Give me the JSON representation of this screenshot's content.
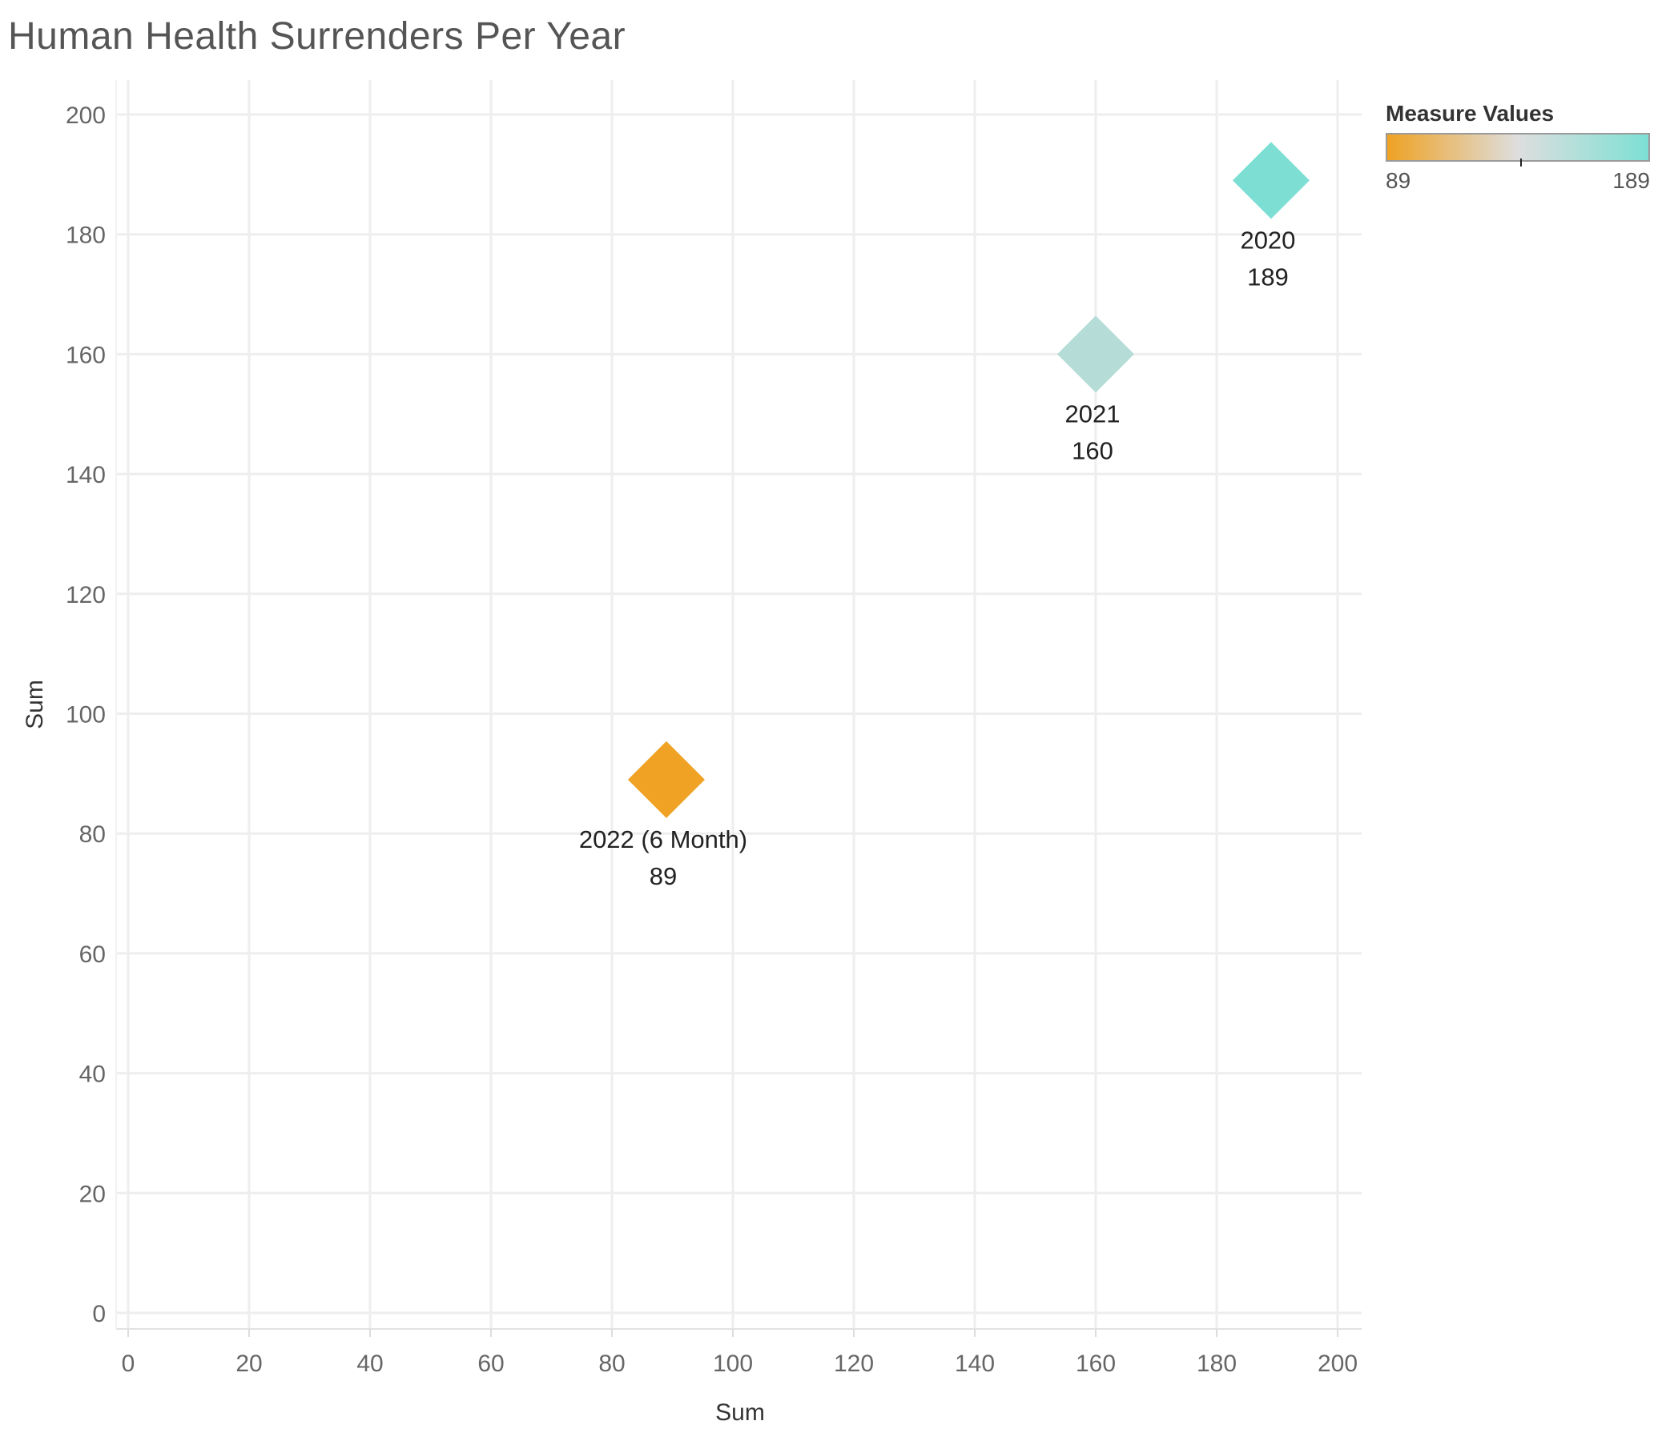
{
  "title": "Human Health Surrenders Per Year",
  "chart_data": {
    "type": "scatter",
    "title": "Human Health Surrenders Per Year",
    "xlabel": "Sum",
    "ylabel": "Sum",
    "xlim": [
      0,
      200
    ],
    "ylim": [
      0,
      200
    ],
    "x_ticks": [
      0,
      20,
      40,
      60,
      80,
      100,
      120,
      140,
      160,
      180,
      200
    ],
    "y_ticks": [
      0,
      20,
      40,
      60,
      80,
      100,
      120,
      140,
      160,
      180,
      200
    ],
    "grid": true,
    "marker": "diamond",
    "points": [
      {
        "label": "2020",
        "x": 189,
        "y": 189,
        "value": "189",
        "color": "#7ddfd4"
      },
      {
        "label": "2021",
        "x": 160,
        "y": 160,
        "value": "160",
        "color": "#b5dcd6"
      },
      {
        "label": "2022 (6 Month)",
        "x": 89,
        "y": 89,
        "value": "89",
        "color": "#efa224"
      }
    ],
    "legend": {
      "title": "Measure Values",
      "placement": "top-right",
      "min_label": "89",
      "max_label": "189",
      "colors": [
        "#efa224",
        "#dedede",
        "#7de0d4"
      ]
    }
  }
}
